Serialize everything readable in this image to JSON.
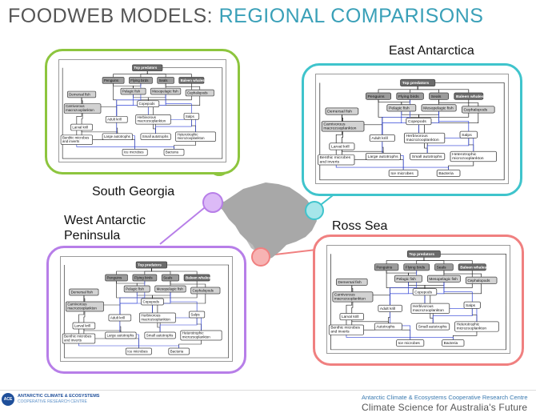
{
  "title": {
    "part1": "FOODWEB MODELS: ",
    "part2": "REGIONAL COMPARISONS"
  },
  "regions": {
    "south_georgia": "South Georgia",
    "east_antarctica": "East Antarctica",
    "wap": "West Antarctic Peninsula",
    "ross_sea": "Ross Sea"
  },
  "nodes": {
    "top_predators": "Top predators",
    "penguins": "Penguins",
    "flying_birds": "Flying birds",
    "seals": "Seals",
    "baleen_whales": "Baleen whales",
    "demersal_fish": "Demersal fish",
    "pelagic_fish": "Pelagic fish",
    "mesopelagic_fish": "Mesopelagic fish",
    "cephalopods": "Cephalopods",
    "carnivorous_mz": "Carnivorous macrozooplankton",
    "copepods": "Copepods",
    "adult_krill": "Adult krill",
    "herbivorous_mz": "Herbivorous macrozooplankton",
    "salps": "Salps",
    "larval_krill": "Larval krill",
    "benthic": "Benthic microbes and inverts",
    "large_autotrophs": "Large autotrophs",
    "small_autotrophs": "Small autotrophs",
    "heterotrophic_mz": "Heterotrophic microzooplankton",
    "ice_microbes": "Ice microbes",
    "bacteria": "Bacteria",
    "autotrophs": "Autotrophs"
  },
  "footer": {
    "logo_mark": "ACE",
    "logo_line1": "ANTARCTIC CLIMATE & ECOSYSTEMS",
    "logo_line2": "COOPERATIVE RESEARCH CENTRE",
    "org": "Antarctic Climate & Ecosystems Cooperative Research Centre",
    "tagline": "Climate Science for Australia's Future"
  },
  "colors": {
    "south_georgia": "#8dc53e",
    "east_antarctica": "#3fc4cc",
    "wap": "#b77ee8",
    "ross_sea": "#f08080",
    "antarctica": "#a8a8a8"
  }
}
